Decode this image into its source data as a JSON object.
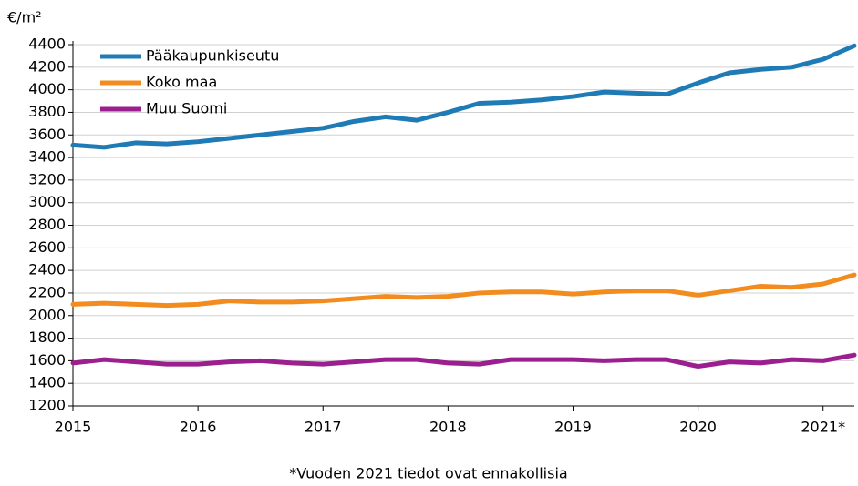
{
  "chart_data": {
    "type": "line",
    "y_label": "€/m²",
    "footnote": "*Vuoden 2021 tiedot ovat ennakollisia",
    "categories": [
      "2015",
      null,
      null,
      null,
      "2016",
      null,
      null,
      null,
      "2017",
      null,
      null,
      null,
      "2018",
      null,
      null,
      null,
      "2019",
      null,
      null,
      null,
      "2020",
      null,
      null,
      null,
      "2021*",
      null
    ],
    "series": [
      {
        "name": "Pääkaupunkiseutu",
        "color": "#1f7bb6",
        "values": [
          3510,
          3490,
          3530,
          3520,
          3540,
          3570,
          3600,
          3630,
          3660,
          3720,
          3760,
          3730,
          3800,
          3880,
          3890,
          3910,
          3940,
          3980,
          3970,
          3960,
          4060,
          4150,
          4180,
          4200,
          4270,
          4390
        ]
      },
      {
        "name": "Koko maa",
        "color": "#f28c1f",
        "values": [
          2100,
          2110,
          2100,
          2090,
          2100,
          2130,
          2120,
          2120,
          2130,
          2150,
          2170,
          2160,
          2170,
          2200,
          2210,
          2210,
          2190,
          2210,
          2220,
          2220,
          2180,
          2220,
          2260,
          2250,
          2280,
          2360
        ]
      },
      {
        "name": "Muu Suomi",
        "color": "#9b1f8f",
        "values": [
          1580,
          1610,
          1590,
          1570,
          1570,
          1590,
          1600,
          1580,
          1570,
          1590,
          1610,
          1610,
          1580,
          1570,
          1610,
          1610,
          1610,
          1600,
          1610,
          1610,
          1550,
          1590,
          1580,
          1610,
          1600,
          1650
        ]
      }
    ],
    "ylim": [
      1200,
      4400
    ],
    "yticks": [
      1200,
      1400,
      1600,
      1800,
      2000,
      2200,
      2400,
      2600,
      2800,
      3000,
      3200,
      3400,
      3600,
      3800,
      4000,
      4200,
      4400
    ],
    "grid": true,
    "legend": "top-left"
  }
}
